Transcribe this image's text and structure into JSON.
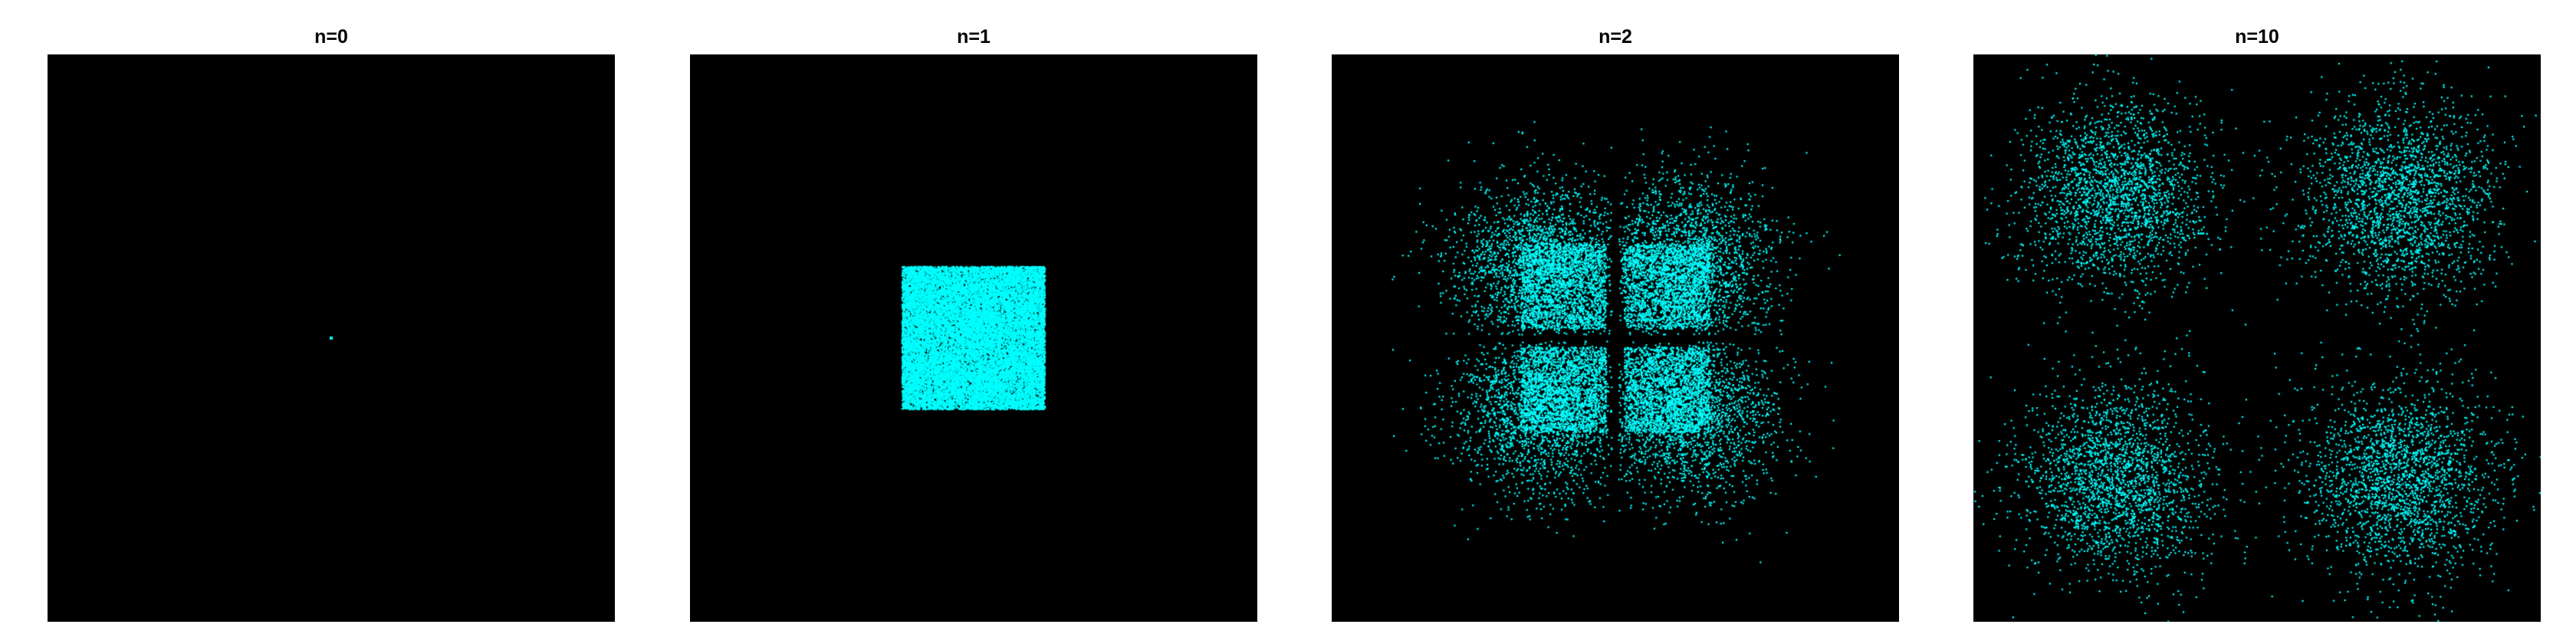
{
  "chart_data": [
    {
      "type": "scatter",
      "title": "n=0",
      "n": 0,
      "background": "#000000",
      "point_color": "#00ffff",
      "xlim": [
        -2.5,
        2.5
      ],
      "ylim": [
        -2.5,
        2.5
      ],
      "axes_visible": false,
      "description_of_points": "single point at origin",
      "points": [
        [
          0,
          0
        ]
      ]
    },
    {
      "type": "scatter",
      "title": "n=1",
      "n": 1,
      "background": "#000000",
      "point_color": "#00ffff",
      "xlim": [
        -2.5,
        2.5
      ],
      "ylim": [
        -2.5,
        2.5
      ],
      "axes_visible": false,
      "distribution": "uniform square",
      "x_range": [
        -0.63,
        0.63
      ],
      "y_range": [
        -0.63,
        0.63
      ],
      "point_count": 20000
    },
    {
      "type": "scatter",
      "title": "n=2",
      "n": 2,
      "background": "#000000",
      "point_color": "#00ffff",
      "xlim": [
        -2.5,
        2.5
      ],
      "ylim": [
        -2.5,
        2.5
      ],
      "axes_visible": false,
      "distribution": "four clusters around quadrant centers with gap on axes",
      "cluster_centers": [
        [
          -0.65,
          0.65
        ],
        [
          0.65,
          0.65
        ],
        [
          -0.65,
          -0.65
        ],
        [
          0.65,
          -0.65
        ]
      ],
      "cluster_spread": 0.38,
      "point_count": 16000
    },
    {
      "type": "scatter",
      "title": "n=10",
      "n": 10,
      "background": "#000000",
      "point_color": "#00ffff",
      "xlim": [
        -2.5,
        2.5
      ],
      "ylim": [
        -2.5,
        2.5
      ],
      "axes_visible": false,
      "distribution": "four diffuse gaussian clusters",
      "cluster_centers": [
        [
          -1.25,
          1.25
        ],
        [
          1.25,
          1.25
        ],
        [
          -1.25,
          -1.25
        ],
        [
          1.25,
          -1.25
        ]
      ],
      "cluster_spread": 0.42,
      "point_count": 9000
    }
  ]
}
